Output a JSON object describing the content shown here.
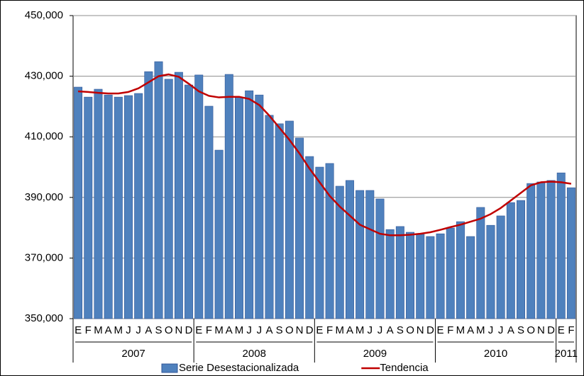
{
  "chart_data": {
    "type": "bar",
    "categories": [
      "E",
      "F",
      "M",
      "A",
      "M",
      "J",
      "J",
      "A",
      "S",
      "O",
      "N",
      "D",
      "E",
      "F",
      "M",
      "A",
      "M",
      "J",
      "J",
      "A",
      "S",
      "O",
      "N",
      "D",
      "E",
      "F",
      "M",
      "A",
      "M",
      "J",
      "J",
      "A",
      "S",
      "O",
      "N",
      "D",
      "E",
      "F",
      "M",
      "A",
      "M",
      "J",
      "J",
      "A",
      "S",
      "O",
      "N",
      "D",
      "E",
      "F"
    ],
    "year_labels": [
      "2007",
      "2008",
      "2009",
      "2010",
      "2011"
    ],
    "series": [
      {
        "name": "Serie Desestacionalizada",
        "type": "bar",
        "color": "#4f81bd",
        "values": [
          426400,
          423100,
          425700,
          423800,
          423100,
          423600,
          424300,
          431500,
          434800,
          429000,
          431300,
          427100,
          430400,
          420100,
          405600,
          430600,
          423100,
          425200,
          423800,
          417100,
          414300,
          415200,
          409600,
          403500,
          400000,
          401200,
          393700,
          395600,
          392300,
          392300,
          389500,
          379400,
          380400,
          378500,
          377800,
          377100,
          378000,
          379900,
          382000,
          377100,
          386700,
          380800,
          383900,
          388300,
          389000,
          394600,
          395100,
          395600,
          398100,
          393200
        ]
      },
      {
        "name": "Tendencia",
        "type": "line",
        "color": "#c00000",
        "values": [
          425000,
          424800,
          424500,
          424300,
          424300,
          424800,
          426000,
          428000,
          430000,
          430600,
          429800,
          427500,
          425000,
          423500,
          423000,
          423200,
          423200,
          422500,
          420500,
          417000,
          413000,
          409000,
          404500,
          399500,
          395000,
          390500,
          387000,
          384000,
          381000,
          379500,
          378000,
          377500,
          377500,
          377700,
          378000,
          378500,
          379300,
          380200,
          381000,
          382000,
          383000,
          384500,
          386500,
          389000,
          391500,
          394000,
          395000,
          395200,
          395000,
          394500
        ]
      }
    ],
    "ylim": [
      350000,
      450000
    ],
    "yticks": [
      {
        "value": 350000,
        "label": "350,000"
      },
      {
        "value": 370000,
        "label": "370,000"
      },
      {
        "value": 390000,
        "label": "390,000"
      },
      {
        "value": 410000,
        "label": "410,000"
      },
      {
        "value": 430000,
        "label": "430,000"
      },
      {
        "value": 450000,
        "label": "450,000"
      }
    ],
    "grid": true,
    "legend": "bottom"
  }
}
